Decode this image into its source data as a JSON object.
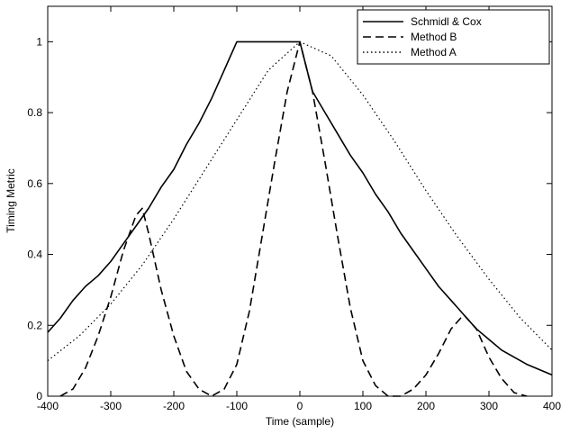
{
  "chart_data": {
    "type": "line",
    "title": "",
    "xlabel": "Time (sample)",
    "ylabel": "Timing Metric",
    "xlim": [
      -400,
      400
    ],
    "ylim": [
      0,
      1.1
    ],
    "xticks": [
      -400,
      -300,
      -200,
      -100,
      0,
      100,
      200,
      300,
      400
    ],
    "xtick_labels": [
      "-400",
      "-300",
      "-200",
      "-100",
      "0",
      "100",
      "200",
      "300",
      "400"
    ],
    "yticks": [
      0,
      0.2,
      0.4,
      0.6,
      0.8,
      1
    ],
    "ytick_labels": [
      "0",
      "0.2",
      "0.4",
      "0.6",
      "0.8",
      "1"
    ],
    "grid": false,
    "legend_position": "top-right",
    "series": [
      {
        "name": "Schmidl & Cox",
        "style": "solid",
        "color": "#000000",
        "x": [
          -400,
          -380,
          -360,
          -340,
          -320,
          -300,
          -280,
          -260,
          -240,
          -220,
          -200,
          -180,
          -160,
          -140,
          -120,
          -100,
          -80,
          -60,
          -40,
          -20,
          0,
          20,
          40,
          60,
          80,
          100,
          120,
          140,
          160,
          180,
          200,
          220,
          240,
          260,
          280,
          300,
          320,
          340,
          360,
          380,
          400
        ],
        "y": [
          0.18,
          0.22,
          0.27,
          0.31,
          0.34,
          0.38,
          0.43,
          0.48,
          0.53,
          0.59,
          0.64,
          0.71,
          0.77,
          0.84,
          0.92,
          1.0,
          1.0,
          1.0,
          1.0,
          1.0,
          1.0,
          0.86,
          0.8,
          0.74,
          0.68,
          0.63,
          0.57,
          0.52,
          0.46,
          0.41,
          0.36,
          0.31,
          0.27,
          0.23,
          0.19,
          0.16,
          0.13,
          0.11,
          0.09,
          0.075,
          0.06
        ]
      },
      {
        "name": "Method B",
        "style": "dashed",
        "color": "#000000",
        "x": [
          -380,
          -360,
          -340,
          -320,
          -300,
          -280,
          -260,
          -250,
          -240,
          -220,
          -200,
          -180,
          -160,
          -140,
          -120,
          -100,
          -80,
          -60,
          -40,
          -20,
          0,
          20,
          40,
          60,
          80,
          100,
          120,
          140,
          160,
          180,
          200,
          220,
          240,
          260,
          280,
          300,
          320,
          340,
          360
        ],
        "y": [
          0.0,
          0.02,
          0.08,
          0.17,
          0.28,
          0.41,
          0.51,
          0.53,
          0.46,
          0.3,
          0.17,
          0.07,
          0.02,
          0.0,
          0.02,
          0.09,
          0.24,
          0.45,
          0.66,
          0.86,
          1.0,
          0.86,
          0.66,
          0.45,
          0.25,
          0.1,
          0.03,
          0.0,
          0.0,
          0.02,
          0.06,
          0.12,
          0.19,
          0.23,
          0.19,
          0.11,
          0.05,
          0.01,
          0.0
        ]
      },
      {
        "name": "Method A",
        "style": "dotted",
        "color": "#000000",
        "x": [
          -400,
          -350,
          -300,
          -250,
          -200,
          -150,
          -100,
          -50,
          0,
          50,
          100,
          150,
          200,
          250,
          300,
          350,
          400
        ],
        "y": [
          0.1,
          0.17,
          0.26,
          0.37,
          0.5,
          0.64,
          0.78,
          0.92,
          1.0,
          0.96,
          0.85,
          0.72,
          0.58,
          0.45,
          0.33,
          0.22,
          0.13
        ]
      }
    ]
  }
}
